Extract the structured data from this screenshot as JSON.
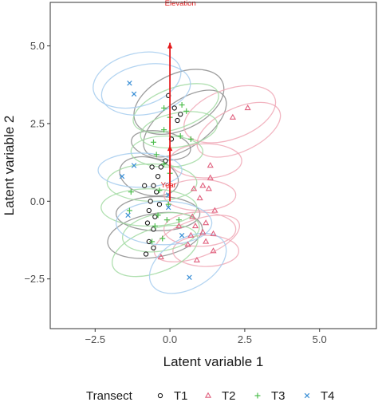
{
  "chart_data": {
    "type": "scatter",
    "title": "",
    "xlabel": "Latent variable 1",
    "ylabel": "Latent variable 2",
    "xlim": [
      -4.0,
      6.9
    ],
    "ylim": [
      -4.1,
      6.4
    ],
    "x_ticks": [
      -2.5,
      0.0,
      2.5,
      5.0
    ],
    "x_tick_labels": [
      "−2.5",
      "0.0",
      "2.5",
      "5.0"
    ],
    "y_ticks": [
      -2.5,
      0.0,
      2.5,
      5.0
    ],
    "y_tick_labels": [
      "−2.5",
      "0.0",
      "2.5",
      "5.0"
    ],
    "grid": false,
    "legend": {
      "position": "bottom",
      "title": "Transect"
    },
    "series": [
      {
        "name": "T1",
        "marker": "circle",
        "color": "#1a1a1a",
        "ellipse_color": "#8c8c8c",
        "points": [
          [
            -0.05,
            3.4
          ],
          [
            0.15,
            3.0
          ],
          [
            0.35,
            2.8
          ],
          [
            0.25,
            2.6
          ],
          [
            0.05,
            2.0
          ],
          [
            -0.15,
            1.3
          ],
          [
            -0.3,
            1.1
          ],
          [
            -0.6,
            1.1
          ],
          [
            -0.4,
            0.8
          ],
          [
            -0.85,
            0.5
          ],
          [
            -0.55,
            0.5
          ],
          [
            -0.45,
            0.3
          ],
          [
            -0.65,
            0.0
          ],
          [
            -0.35,
            -0.1
          ],
          [
            -0.7,
            -0.3
          ],
          [
            -0.5,
            -0.5
          ],
          [
            -0.75,
            -0.7
          ],
          [
            -0.55,
            -0.9
          ],
          [
            -0.7,
            -1.3
          ],
          [
            -0.8,
            -1.7
          ],
          [
            -0.55,
            -1.5
          ]
        ],
        "ellipses": [
          {
            "cx": -0.5,
            "cy": -1.1,
            "rx": 1.6,
            "ry": 0.7,
            "angle": -10
          },
          {
            "cx": -0.4,
            "cy": -0.4,
            "rx": 1.4,
            "ry": 0.55,
            "angle": 0
          },
          {
            "cx": -0.7,
            "cy": 0.8,
            "rx": 1.0,
            "ry": 0.6,
            "angle": 15
          },
          {
            "cx": 0.5,
            "cy": 2.5,
            "rx": 1.6,
            "ry": 0.75,
            "angle": -35
          },
          {
            "cx": 0.3,
            "cy": 3.2,
            "rx": 1.6,
            "ry": 0.9,
            "angle": -25
          },
          {
            "cx": -0.3,
            "cy": 1.8,
            "rx": 1.0,
            "ry": 0.45,
            "angle": 10
          }
        ]
      },
      {
        "name": "T2",
        "marker": "triangle",
        "color": "#e0607e",
        "ellipse_color": "#f0a8b6",
        "points": [
          [
            2.6,
            3.0
          ],
          [
            2.1,
            2.7
          ],
          [
            1.35,
            1.15
          ],
          [
            1.35,
            0.75
          ],
          [
            1.1,
            0.5
          ],
          [
            0.8,
            0.4
          ],
          [
            1.3,
            0.4
          ],
          [
            1.0,
            0.1
          ],
          [
            1.5,
            -0.3
          ],
          [
            0.75,
            -0.5
          ],
          [
            1.2,
            -0.7
          ],
          [
            0.85,
            -0.8
          ],
          [
            1.1,
            -1.0
          ],
          [
            1.45,
            -1.05
          ],
          [
            0.7,
            -1.1
          ],
          [
            1.2,
            -1.3
          ],
          [
            0.6,
            -1.4
          ],
          [
            1.45,
            -1.6
          ],
          [
            0.3,
            -0.8
          ],
          [
            -0.3,
            -1.8
          ],
          [
            0.9,
            -1.9
          ]
        ],
        "ellipses": [
          {
            "cx": 2.0,
            "cy": 2.8,
            "rx": 1.6,
            "ry": 0.8,
            "angle": -20
          },
          {
            "cx": 2.3,
            "cy": 2.3,
            "rx": 1.5,
            "ry": 0.7,
            "angle": -25
          },
          {
            "cx": 1.2,
            "cy": 1.3,
            "rx": 1.2,
            "ry": 0.55,
            "angle": 0
          },
          {
            "cx": 1.0,
            "cy": 0.2,
            "rx": 1.2,
            "ry": 0.5,
            "angle": 0
          },
          {
            "cx": 1.0,
            "cy": -0.9,
            "rx": 1.2,
            "ry": 0.55,
            "angle": 0
          },
          {
            "cx": 1.2,
            "cy": -1.6,
            "rx": 1.1,
            "ry": 0.5,
            "angle": 0
          },
          {
            "cx": 0.9,
            "cy": -1.2,
            "rx": 1.5,
            "ry": 0.6,
            "angle": -20
          }
        ]
      },
      {
        "name": "T3",
        "marker": "plus",
        "color": "#4dbd4d",
        "ellipse_color": "#a3dba3",
        "points": [
          [
            -0.2,
            3.0
          ],
          [
            0.4,
            3.1
          ],
          [
            0.55,
            2.9
          ],
          [
            0.0,
            2.7
          ],
          [
            -0.2,
            2.3
          ],
          [
            0.35,
            2.1
          ],
          [
            0.7,
            2.0
          ],
          [
            -0.55,
            1.9
          ],
          [
            -0.45,
            1.5
          ],
          [
            -0.2,
            1.2
          ],
          [
            0.0,
            0.9
          ],
          [
            -0.35,
            0.35
          ],
          [
            -1.3,
            0.3
          ],
          [
            -1.35,
            -0.3
          ],
          [
            -0.5,
            -0.8
          ],
          [
            -0.05,
            -0.1
          ],
          [
            0.3,
            -0.6
          ],
          [
            -0.1,
            -0.6
          ],
          [
            -0.25,
            -1.2
          ],
          [
            -0.6,
            -1.3
          ],
          [
            -0.4,
            -0.45
          ]
        ],
        "ellipses": [
          {
            "cx": 0.2,
            "cy": 3.0,
            "rx": 1.5,
            "ry": 0.65,
            "angle": -20
          },
          {
            "cx": 0.3,
            "cy": 2.3,
            "rx": 1.3,
            "ry": 0.55,
            "angle": -10
          },
          {
            "cx": -0.1,
            "cy": 1.6,
            "rx": 1.2,
            "ry": 0.5,
            "angle": 0
          },
          {
            "cx": -0.6,
            "cy": 0.6,
            "rx": 1.5,
            "ry": 0.6,
            "angle": 0
          },
          {
            "cx": -0.7,
            "cy": -0.2,
            "rx": 1.6,
            "ry": 0.6,
            "angle": 0
          },
          {
            "cx": -0.3,
            "cy": -1.0,
            "rx": 1.3,
            "ry": 0.6,
            "angle": -10
          },
          {
            "cx": -0.5,
            "cy": -1.6,
            "rx": 1.5,
            "ry": 0.7,
            "angle": -20
          }
        ]
      },
      {
        "name": "T4",
        "marker": "x",
        "color": "#3a8fd6",
        "ellipse_color": "#a6cdee",
        "points": [
          [
            -1.35,
            3.8
          ],
          [
            -1.2,
            3.45
          ],
          [
            -1.2,
            1.15
          ],
          [
            -1.6,
            0.8
          ],
          [
            -0.05,
            0.2
          ],
          [
            -0.05,
            -0.2
          ],
          [
            0.4,
            -1.1
          ],
          [
            0.65,
            -2.45
          ],
          [
            -1.4,
            -0.45
          ]
        ],
        "ellipses": [
          {
            "cx": -1.1,
            "cy": 3.9,
            "rx": 1.5,
            "ry": 0.85,
            "angle": -15
          },
          {
            "cx": -0.8,
            "cy": 3.6,
            "rx": 1.5,
            "ry": 0.8,
            "angle": -10
          },
          {
            "cx": -1.0,
            "cy": 1.0,
            "rx": 1.4,
            "ry": 0.55,
            "angle": 0
          },
          {
            "cx": -0.2,
            "cy": -0.7,
            "rx": 1.6,
            "ry": 0.7,
            "angle": 0
          },
          {
            "cx": 0.6,
            "cy": -2.0,
            "rx": 1.4,
            "ry": 0.8,
            "angle": -30
          }
        ]
      }
    ],
    "vectors": [
      {
        "label": "Elevation",
        "x": 0.0,
        "y": 5.1,
        "label_x": 0.35,
        "label_y": 6.3
      },
      {
        "label": "Year",
        "x": 0.0,
        "y": 1.8,
        "label_x": -0.05,
        "label_y": 0.45
      }
    ],
    "vector_color": "#e41a1c"
  }
}
